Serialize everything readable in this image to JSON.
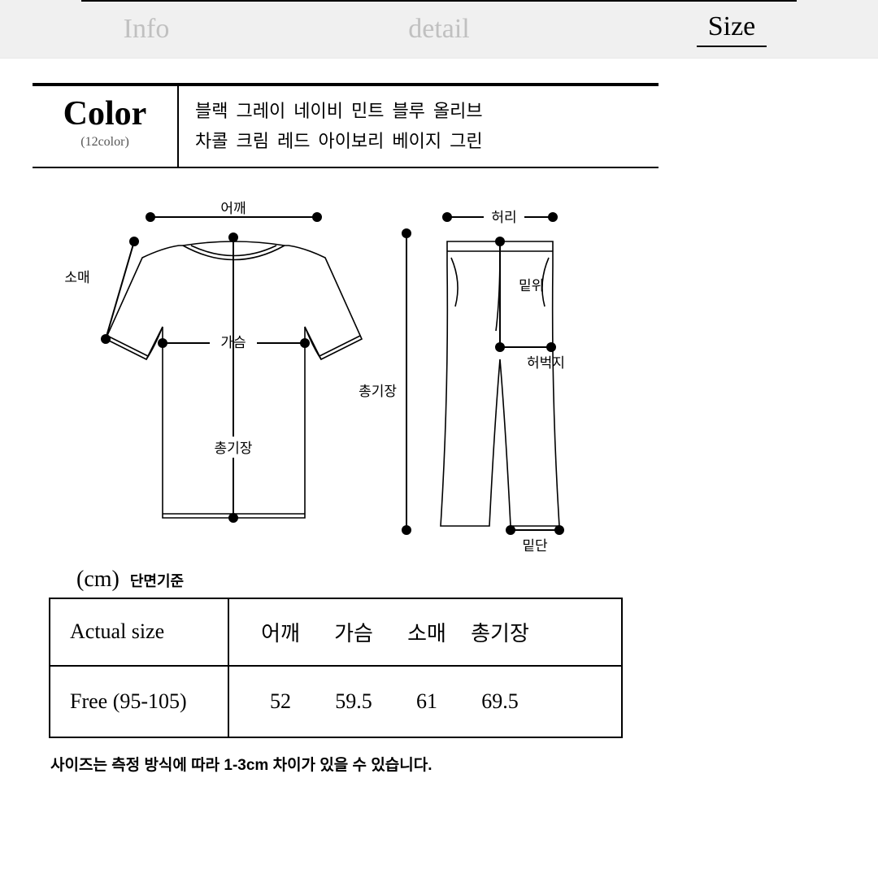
{
  "tabs": {
    "info": "Info",
    "detail": "detail",
    "size": "Size",
    "active_index": 2
  },
  "color_section": {
    "title": "Color",
    "subtitle": "(12color)",
    "colors_row1": [
      "블랙",
      "그레이",
      "네이비",
      "민트",
      "블루",
      "올리브"
    ],
    "colors_row2": [
      "차콜",
      "크림",
      "레드",
      "아이보리",
      "베이지",
      "그린"
    ]
  },
  "diagram": {
    "stroke": "#000000",
    "fill": "#ffffff",
    "label_font": "Malgun Gothic",
    "label_size": 17,
    "shirt": {
      "labels": {
        "shoulder": "어깨",
        "sleeve": "소매",
        "chest": "가슴",
        "length": "총기장"
      }
    },
    "pants": {
      "labels": {
        "waist": "허리",
        "rise": "밑위",
        "thigh": "허벅지",
        "length": "총기장",
        "hem": "밑단"
      }
    }
  },
  "size_table": {
    "unit": "(cm)",
    "unit_note": "단면기준",
    "header_left": "Actual size",
    "columns": [
      "어깨",
      "가슴",
      "소매",
      "총기장"
    ],
    "row_label": "Free (95-105)",
    "values": [
      "52",
      "59.5",
      "61",
      "69.5"
    ],
    "footnote": "사이즈는 측정 방식에 따라 1-3cm 차이가 있을 수 있습니다."
  }
}
